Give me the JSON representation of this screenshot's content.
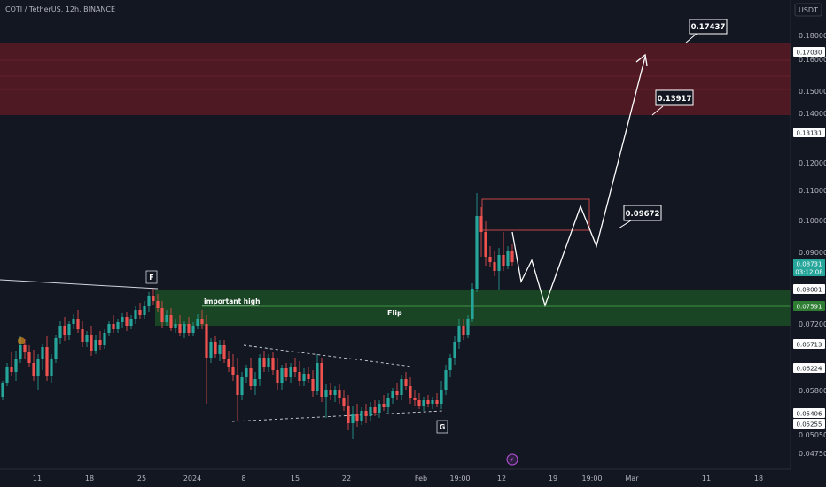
{
  "header": {
    "symbol_title": "COTI / TetherUS, 12h, BINANCE"
  },
  "price_axis": {
    "currency_label": "USDT",
    "ticks": [
      "0.18000",
      "0.16000",
      "0.15000",
      "0.14000",
      "0.12000",
      "0.11000",
      "0.10000",
      "0.09000",
      "0.07200",
      "0.05800",
      "0.05050",
      "0.04750"
    ]
  },
  "price_tags": [
    {
      "label": "0.17030",
      "variant": "plain"
    },
    {
      "label": "0.13131",
      "variant": "plain"
    },
    {
      "label": "0.08731",
      "variant": "current"
    },
    {
      "label": "03:12:08",
      "variant": "current-timer"
    },
    {
      "label": "0.08001",
      "variant": "plain"
    },
    {
      "label": "0.07591",
      "variant": "green"
    },
    {
      "label": "0.06713",
      "variant": "plain"
    },
    {
      "label": "0.06224",
      "variant": "plain"
    },
    {
      "label": "0.05406",
      "variant": "plain"
    },
    {
      "label": "0.05255",
      "variant": "plain"
    }
  ],
  "time_axis": {
    "labels": [
      "11",
      "18",
      "25",
      "2024",
      "8",
      "15",
      "22",
      "Feb",
      "19:00",
      "12",
      "19",
      "19:00",
      "Mar",
      "11",
      "18"
    ]
  },
  "annotations": {
    "label_F": "F",
    "label_G": "G",
    "important_high": "important high",
    "flip": "Flip",
    "target_1": "0.09672",
    "target_2": "0.13917",
    "target_3": "0.17437"
  },
  "colors": {
    "background": "#131722",
    "bull_candle": "#26a69a",
    "bear_candle": "#ef5350",
    "resistance_zone": "#7a1f2b",
    "support_zone": "#1e5a2a",
    "projection_path": "#ffffff",
    "current_price_tag": "#26a69a"
  },
  "icons": {
    "event_marker": "lightning-icon",
    "dividend_marker": "orange-dot-icon"
  }
}
